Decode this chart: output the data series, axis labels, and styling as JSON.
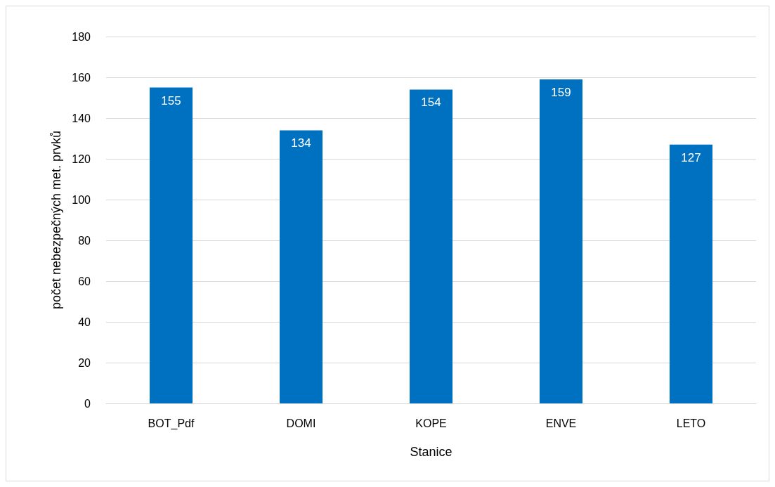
{
  "chart_data": {
    "type": "bar",
    "xlabel": "Stanice",
    "ylabel": "počet nebezpečných met. prvků",
    "categories": [
      "BOT_Pdf",
      "DOMI",
      "KOPE",
      "ENVE",
      "LETO"
    ],
    "values": [
      155,
      134,
      154,
      159,
      127
    ],
    "color": "#0070c0",
    "ylim": [
      0,
      180
    ],
    "yticks": [
      0,
      20,
      40,
      60,
      80,
      100,
      120,
      140,
      160,
      180
    ],
    "grid": "y",
    "data_labels": true
  }
}
